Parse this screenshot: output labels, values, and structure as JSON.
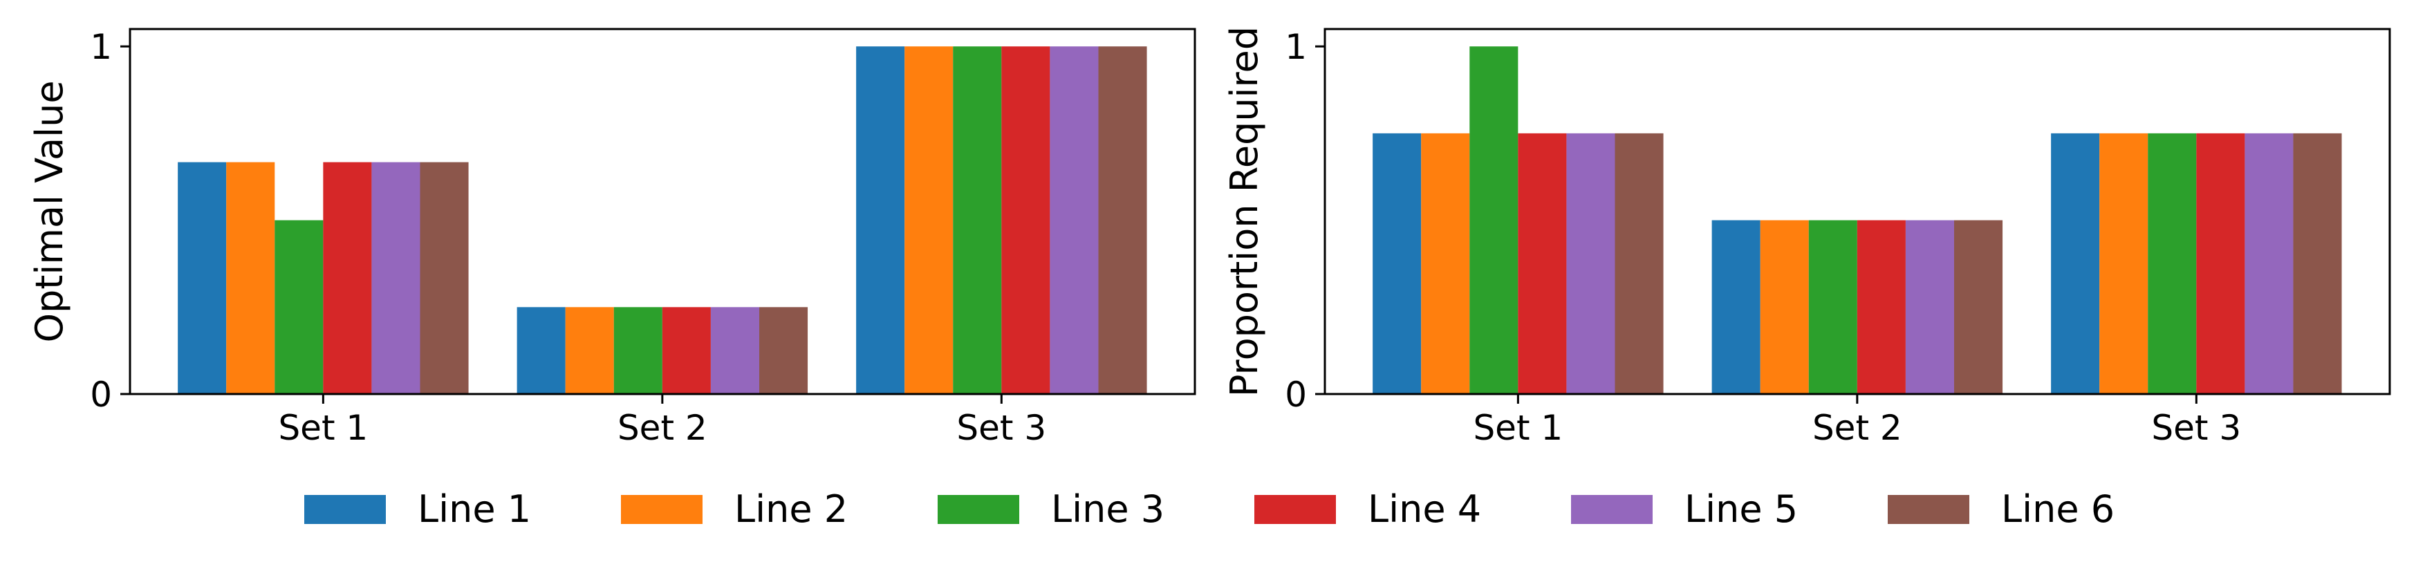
{
  "colors": {
    "line1": "#1f77b4",
    "line2": "#ff7f0e",
    "line3": "#2ca02c",
    "line4": "#d62728",
    "line5": "#9467bd",
    "line6": "#8c564b"
  },
  "legend": {
    "placement": "bottom-center",
    "entries": [
      "Line 1",
      "Line 2",
      "Line 3",
      "Line 4",
      "Line 5",
      "Line 6"
    ]
  },
  "chart_data": [
    {
      "type": "bar",
      "ylabel": "Optimal Value",
      "xlabel": "",
      "ylim": [
        0,
        1.05
      ],
      "yticks": [
        "0",
        "1"
      ],
      "grid": false,
      "categories": [
        "Set 1",
        "Set 2",
        "Set 3"
      ],
      "series": [
        {
          "name": "Line 1",
          "values": [
            0.667,
            0.25,
            1.0
          ]
        },
        {
          "name": "Line 2",
          "values": [
            0.667,
            0.25,
            1.0
          ]
        },
        {
          "name": "Line 3",
          "values": [
            0.5,
            0.25,
            1.0
          ]
        },
        {
          "name": "Line 4",
          "values": [
            0.667,
            0.25,
            1.0
          ]
        },
        {
          "name": "Line 5",
          "values": [
            0.667,
            0.25,
            1.0
          ]
        },
        {
          "name": "Line 6",
          "values": [
            0.667,
            0.25,
            1.0
          ]
        }
      ]
    },
    {
      "type": "bar",
      "ylabel": "Proportion Required",
      "xlabel": "",
      "ylim": [
        0,
        1.05
      ],
      "yticks": [
        "0",
        "1"
      ],
      "grid": false,
      "categories": [
        "Set 1",
        "Set 2",
        "Set 3"
      ],
      "series": [
        {
          "name": "Line 1",
          "values": [
            0.75,
            0.5,
            0.75
          ]
        },
        {
          "name": "Line 2",
          "values": [
            0.75,
            0.5,
            0.75
          ]
        },
        {
          "name": "Line 3",
          "values": [
            1.0,
            0.5,
            0.75
          ]
        },
        {
          "name": "Line 4",
          "values": [
            0.75,
            0.5,
            0.75
          ]
        },
        {
          "name": "Line 5",
          "values": [
            0.75,
            0.5,
            0.75
          ]
        },
        {
          "name": "Line 6",
          "values": [
            0.75,
            0.5,
            0.75
          ]
        }
      ]
    }
  ]
}
